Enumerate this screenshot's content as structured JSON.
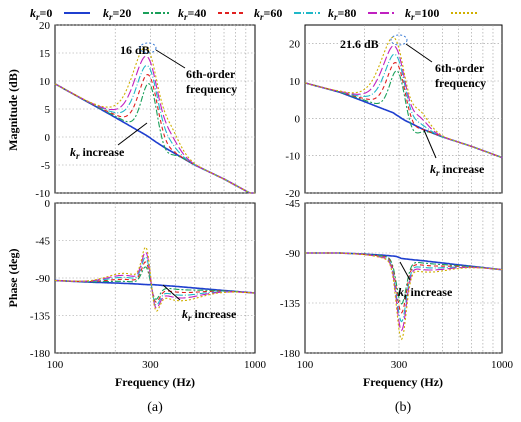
{
  "legend": [
    {
      "sym": "k",
      "sub": "r",
      "eq": "=0",
      "color": "#1f3fcf",
      "dash": ""
    },
    {
      "sym": "k",
      "sub": "r",
      "eq": "=20",
      "color": "#1aa05a",
      "dash": "6,2,2,2"
    },
    {
      "sym": "k",
      "sub": "r",
      "eq": "=40",
      "color": "#e02020",
      "dash": "4,3"
    },
    {
      "sym": "k",
      "sub": "r",
      "eq": "=60",
      "color": "#20b8c8",
      "dash": "7,2,1,2"
    },
    {
      "sym": "k",
      "sub": "r",
      "eq": "=80",
      "color": "#c020c0",
      "dash": "9,3"
    },
    {
      "sym": "k",
      "sub": "r",
      "eq": "=100",
      "color": "#d0b000",
      "dash": "2,2"
    }
  ],
  "captions": {
    "a": "(a)",
    "b": "(b)"
  },
  "chart_data": [
    {
      "type": "line",
      "id": "a-mag",
      "xlabel": "",
      "ylabel": "Magnitude (dB)",
      "xscale": "log",
      "xlim": [
        100,
        1000
      ],
      "ylim": [
        -10,
        20
      ],
      "xticks": [],
      "yticks": [
        20,
        15,
        10,
        5,
        0,
        -5,
        -10
      ],
      "grid": true,
      "x": [
        100,
        150,
        200,
        250,
        280,
        295,
        300,
        305,
        320,
        350,
        400,
        500,
        700,
        1000
      ],
      "series_base": [
        9.5,
        6.0,
        3.5,
        1.5,
        0.5,
        0.0,
        -0.2,
        -0.4,
        -0.9,
        -1.8,
        -3.0,
        -5.0,
        -7.5,
        -10.5
      ],
      "resonance": {
        "x": 300,
        "peak_db": 16,
        "peak_label": "16 dB"
      },
      "annotations": [
        "6th-order",
        "frequency",
        "increase"
      ]
    },
    {
      "type": "line",
      "id": "b-mag",
      "xlabel": "",
      "ylabel": "",
      "xscale": "log",
      "xlim": [
        100,
        1000
      ],
      "ylim": [
        -20,
        25
      ],
      "xticks": [],
      "yticks": [
        20,
        10,
        0,
        -10,
        -20
      ],
      "grid": true,
      "x": [
        100,
        150,
        200,
        250,
        280,
        295,
        300,
        305,
        320,
        350,
        400,
        500,
        700,
        1000
      ],
      "series_base": [
        9.5,
        7.0,
        4.5,
        2.5,
        1.5,
        0.7,
        0.5,
        0.2,
        -0.5,
        -1.5,
        -3.0,
        -5.0,
        -7.5,
        -10.5
      ],
      "resonance": {
        "x": 300,
        "peak_db": 21.6,
        "peak_label": "21.6 dB"
      },
      "annotations": [
        "6th-order",
        "frequency",
        "increase"
      ]
    },
    {
      "type": "line",
      "id": "a-phase",
      "xlabel": "Frequency  (Hz)",
      "ylabel": "Phase (deg)",
      "xscale": "log",
      "xlim": [
        100,
        1000
      ],
      "ylim": [
        -180,
        0
      ],
      "xticks": [
        "100",
        "300",
        "1000"
      ],
      "yticks": [
        0,
        -45,
        -90,
        -135,
        -180
      ],
      "grid": true,
      "x": [
        100,
        150,
        200,
        250,
        290,
        300,
        310,
        350,
        400,
        500,
        700,
        1000
      ],
      "series_base": [
        -93,
        -95,
        -96,
        -97,
        -98,
        -98,
        -98,
        -99,
        -100,
        -102,
        -105,
        -108
      ],
      "resonance": {
        "x": 300,
        "up_deg": -30,
        "down_deg": -150
      },
      "annotations": [
        "increase"
      ]
    },
    {
      "type": "line",
      "id": "b-phase",
      "xlabel": "Frequency  (Hz)",
      "ylabel": "",
      "xscale": "log",
      "xlim": [
        100,
        1000
      ],
      "ylim": [
        -180,
        -45
      ],
      "xticks": [
        "100",
        "300",
        "1000"
      ],
      "yticks": [
        -45,
        -90,
        -135,
        -180
      ],
      "grid": true,
      "x": [
        100,
        150,
        200,
        250,
        290,
        300,
        310,
        350,
        400,
        500,
        700,
        1000
      ],
      "series_base": [
        -90,
        -90,
        -91,
        -92,
        -93,
        -94,
        -95,
        -96,
        -97,
        -99,
        -102,
        -105
      ],
      "resonance": {
        "x": 300,
        "down_deg": -160
      },
      "annotations": [
        "increase"
      ]
    }
  ]
}
